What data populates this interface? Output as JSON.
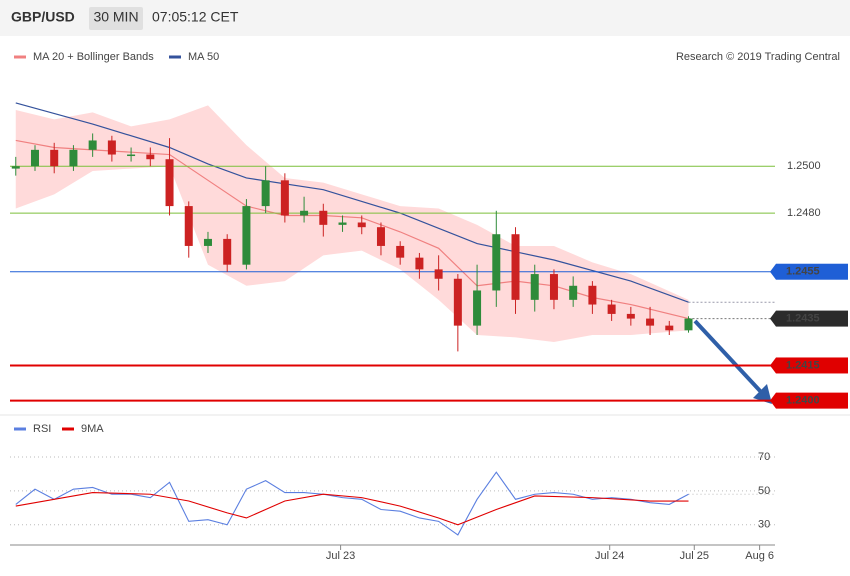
{
  "chart_data": {
    "type": "candlestick",
    "title": "GBP/USD",
    "timeframe": "30 MIN",
    "time": "07:05:12 CET",
    "credit": "Research © 2019 Trading Central",
    "xlim": [
      -0.3,
      39.5
    ],
    "xticks": [
      {
        "value": 16.9,
        "label": "Jul 23"
      },
      {
        "value": 30.9,
        "label": "Jul 24"
      },
      {
        "value": 35.3,
        "label": "Jul 25"
      },
      {
        "value": 38.7,
        "label": "Aug 6"
      }
    ],
    "ylim": [
      1.2396,
      1.2556
    ],
    "up_color": "#2e8b3a",
    "down_color": "#cc2222",
    "candles": [
      [
        1.2499,
        1.2504,
        1.2496,
        1.25
      ],
      [
        1.25,
        1.2509,
        1.2498,
        1.2507
      ],
      [
        1.2507,
        1.251,
        1.2497,
        1.25
      ],
      [
        1.25,
        1.2509,
        1.2498,
        1.2507
      ],
      [
        1.2507,
        1.2514,
        1.2504,
        1.2511
      ],
      [
        1.2511,
        1.2513,
        1.2502,
        1.2505
      ],
      [
        1.2505,
        1.2508,
        1.2502,
        1.2505
      ],
      [
        1.2505,
        1.2508,
        1.25,
        1.2503
      ],
      [
        1.2503,
        1.2512,
        1.2479,
        1.2483
      ],
      [
        1.2483,
        1.2485,
        1.2461,
        1.2466
      ],
      [
        1.2466,
        1.2472,
        1.2463,
        1.2469
      ],
      [
        1.2469,
        1.2471,
        1.2455,
        1.2458
      ],
      [
        1.2458,
        1.2486,
        1.2456,
        1.2483
      ],
      [
        1.2483,
        1.25,
        1.248,
        1.2494
      ],
      [
        1.2494,
        1.2497,
        1.2476,
        1.2479
      ],
      [
        1.2479,
        1.2487,
        1.2476,
        1.2481
      ],
      [
        1.2481,
        1.2484,
        1.247,
        1.2475
      ],
      [
        1.2475,
        1.2479,
        1.2472,
        1.2476
      ],
      [
        1.2476,
        1.2479,
        1.2471,
        1.2474
      ],
      [
        1.2474,
        1.2476,
        1.2462,
        1.2466
      ],
      [
        1.2466,
        1.2468,
        1.2458,
        1.2461
      ],
      [
        1.2461,
        1.2463,
        1.2452,
        1.2456
      ],
      [
        1.2456,
        1.2462,
        1.2447,
        1.2452
      ],
      [
        1.2452,
        1.2454,
        1.2421,
        1.2432
      ],
      [
        1.2432,
        1.2458,
        1.2428,
        1.2447
      ],
      [
        1.2447,
        1.2481,
        1.244,
        1.2471
      ],
      [
        1.2471,
        1.2474,
        1.2437,
        1.2443
      ],
      [
        1.2443,
        1.2458,
        1.2438,
        1.2454
      ],
      [
        1.2454,
        1.2456,
        1.2439,
        1.2443
      ],
      [
        1.2443,
        1.2453,
        1.244,
        1.2449
      ],
      [
        1.2449,
        1.2451,
        1.2437,
        1.2441
      ],
      [
        1.2441,
        1.2443,
        1.2434,
        1.2437
      ],
      [
        1.2437,
        1.244,
        1.2432,
        1.2435
      ],
      [
        1.2435,
        1.244,
        1.2428,
        1.2432
      ],
      [
        1.2432,
        1.2434,
        1.2428,
        1.243
      ],
      [
        1.243,
        1.2436,
        1.2429,
        1.2435
      ]
    ],
    "indicators": [
      {
        "name": "MA 20 + Bollinger Bands",
        "color": "#f08080",
        "band_color": "#ffdada",
        "x": [
          0,
          2,
          4,
          6,
          8,
          10,
          12,
          14,
          16,
          18,
          20,
          22,
          24,
          26,
          28,
          30,
          32,
          35
        ],
        "values": [
          1.2511,
          1.2508,
          1.2507,
          1.2506,
          1.2505,
          1.2494,
          1.2483,
          1.2479,
          1.2479,
          1.2478,
          1.2472,
          1.2465,
          1.2449,
          1.2451,
          1.2449,
          1.2444,
          1.2441,
          1.2435
        ],
        "upper": [
          1.2524,
          1.252,
          1.2523,
          1.2517,
          1.252,
          1.2526,
          1.2509,
          1.2495,
          1.2493,
          1.2488,
          1.2483,
          1.2482,
          1.2475,
          1.2466,
          1.2466,
          1.2459,
          1.2454,
          1.2443
        ],
        "lower": [
          1.2482,
          1.2488,
          1.2498,
          1.2499,
          1.25,
          1.2458,
          1.2449,
          1.2451,
          1.2462,
          1.2464,
          1.2456,
          1.2443,
          1.2428,
          1.2427,
          1.2425,
          1.2428,
          1.2428,
          1.243
        ]
      },
      {
        "name": "MA 50",
        "color": "#34529c",
        "x": [
          0,
          4,
          8,
          10,
          12,
          16,
          20,
          24,
          28,
          32,
          35
        ],
        "values": [
          1.2527,
          1.2518,
          1.2508,
          1.2501,
          1.2495,
          1.249,
          1.248,
          1.2467,
          1.246,
          1.2451,
          1.2442
        ]
      }
    ],
    "levels": [
      {
        "value": 1.25,
        "label": "1.2500",
        "color": "#7cbf3a",
        "style": "solid",
        "tag": false
      },
      {
        "value": 1.248,
        "label": "1.2480",
        "color": "#7cbf3a",
        "style": "solid",
        "tag": false
      },
      {
        "value": 1.2455,
        "label": "1.2455",
        "color": "#1f5fd6",
        "style": "solid",
        "tag": true
      },
      {
        "value": 1.2435,
        "label": "1.2435",
        "color": "#2b2b2b",
        "style": "dotted",
        "tag": true
      },
      {
        "value": 1.2415,
        "label": "1.2415",
        "color": "#e00000",
        "style": "solid",
        "tag": true
      },
      {
        "value": 1.24,
        "label": "1.2400",
        "color": "#e00000",
        "style": "solid",
        "tag": true
      }
    ],
    "rsi": {
      "ylim": [
        21,
        80
      ],
      "yticks": [
        30,
        50,
        70
      ],
      "series": [
        {
          "name": "RSI",
          "color": "#5b7fe0",
          "values": [
            42,
            51,
            45,
            51,
            52,
            48,
            48,
            46,
            55,
            32,
            33,
            30,
            51,
            56,
            49,
            49,
            48,
            46,
            45,
            39,
            38,
            34,
            32,
            24,
            45,
            61,
            45,
            48,
            49,
            48,
            45,
            46,
            45,
            43,
            42,
            48
          ]
        },
        {
          "name": "9MA",
          "color": "#e00000",
          "x": [
            0,
            4,
            7,
            9,
            11,
            12,
            14,
            16,
            18,
            20,
            22,
            23,
            25,
            27,
            30,
            33,
            35
          ],
          "values": [
            41,
            49,
            48,
            44,
            37,
            34,
            44,
            48,
            46,
            41,
            34,
            30,
            39,
            47,
            46,
            44,
            44
          ]
        }
      ]
    }
  }
}
